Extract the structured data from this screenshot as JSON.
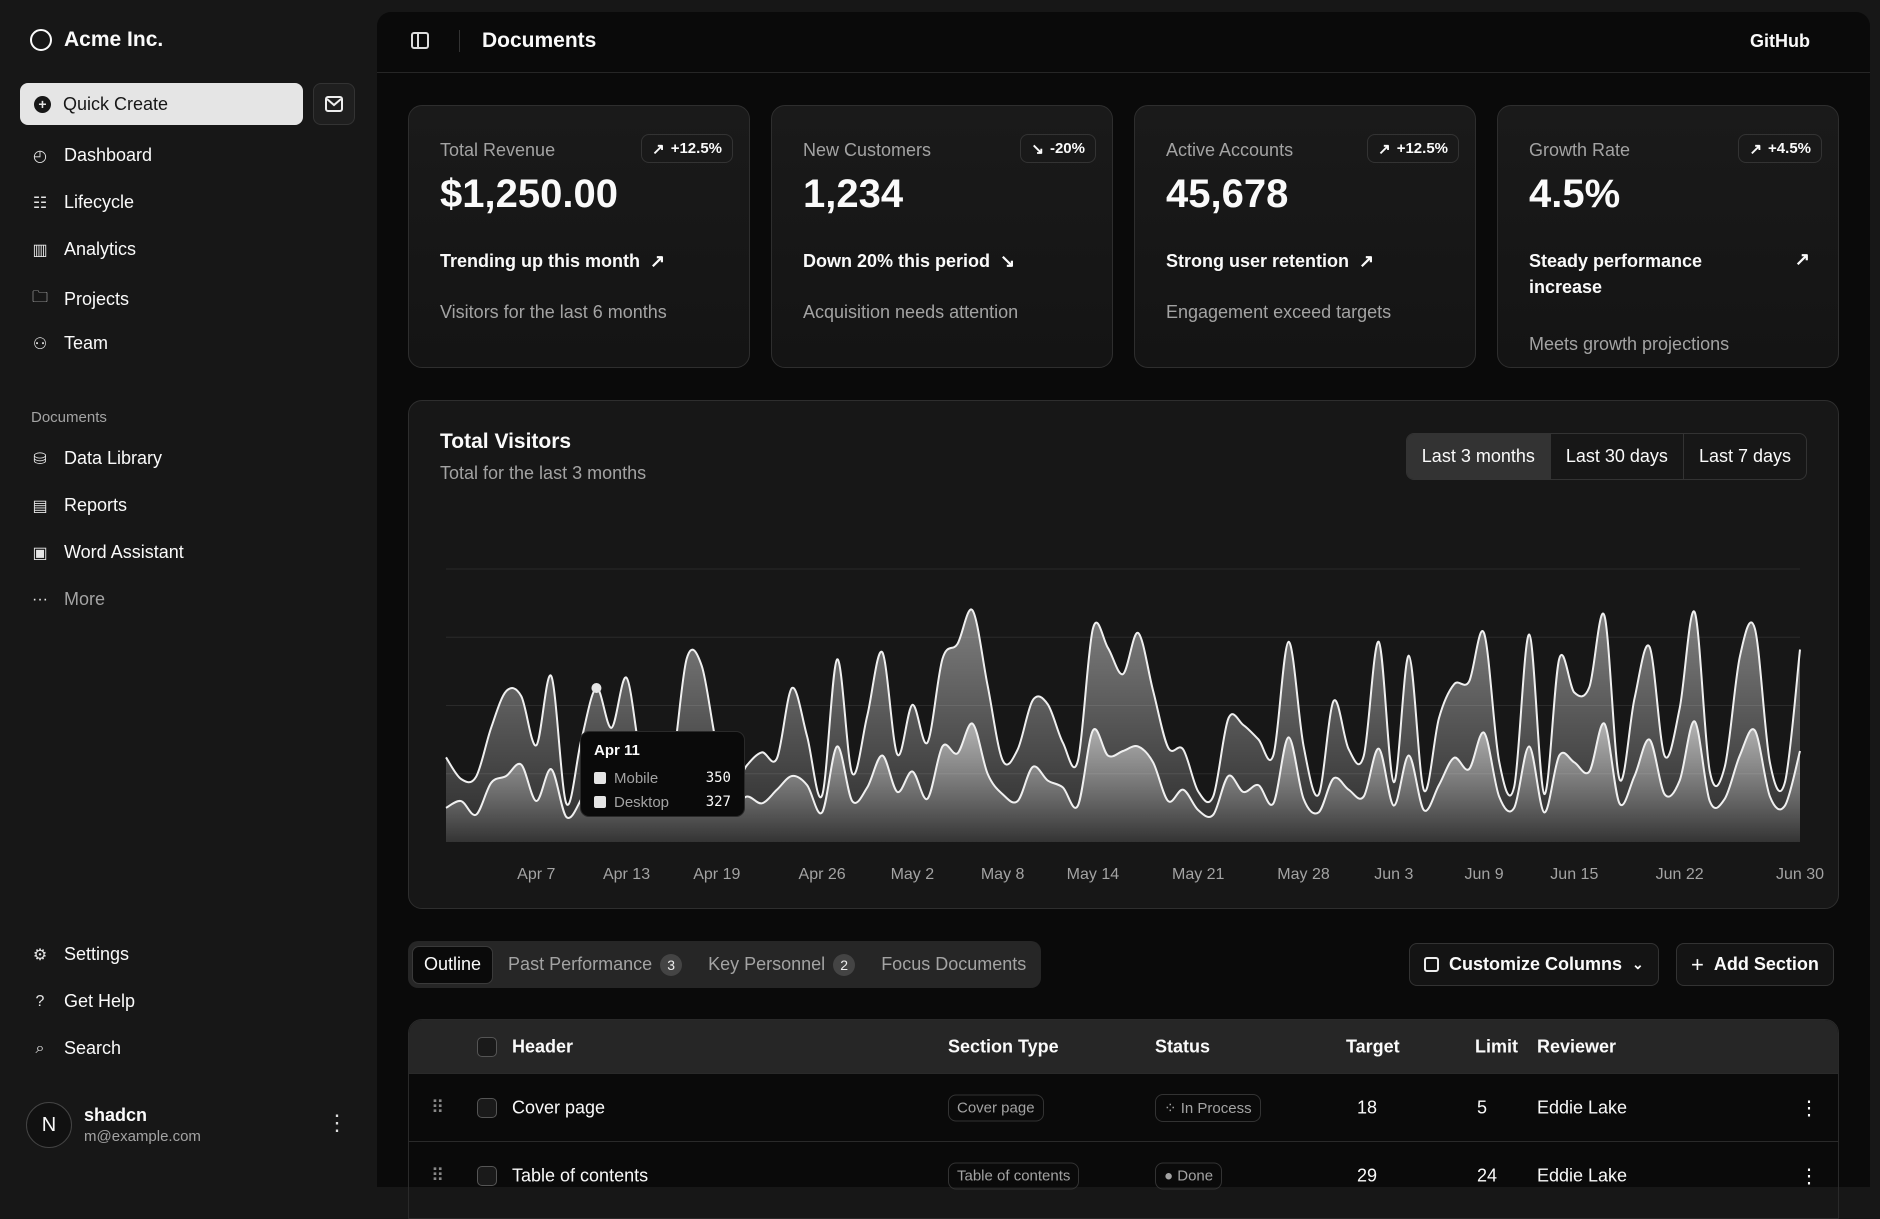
{
  "sidebar": {
    "brand": "Acme Inc.",
    "quick_create": "Quick Create",
    "nav": [
      {
        "label": "Dashboard",
        "icon": "gauge-icon"
      },
      {
        "label": "Lifecycle",
        "icon": "list-details-icon"
      },
      {
        "label": "Analytics",
        "icon": "chart-bar-icon"
      },
      {
        "label": "Projects",
        "icon": "folder-icon"
      },
      {
        "label": "Team",
        "icon": "users-icon"
      }
    ],
    "documents_label": "Documents",
    "documents": [
      {
        "label": "Data Library",
        "icon": "database-icon"
      },
      {
        "label": "Reports",
        "icon": "report-icon"
      },
      {
        "label": "Word Assistant",
        "icon": "file-word-icon"
      },
      {
        "label": "More",
        "icon": "dots-icon"
      }
    ],
    "bottom": [
      {
        "label": "Settings",
        "icon": "settings-icon"
      },
      {
        "label": "Get Help",
        "icon": "help-icon"
      },
      {
        "label": "Search",
        "icon": "search-icon"
      }
    ],
    "user": {
      "initial": "N",
      "name": "shadcn",
      "email": "m@example.com"
    }
  },
  "header": {
    "title": "Documents",
    "github": "GitHub"
  },
  "cards": [
    {
      "label": "Total Revenue",
      "badge": "+12.5%",
      "trend": "up",
      "value": "$1,250.00",
      "headline": "Trending up this month",
      "sub": "Visitors for the last 6 months"
    },
    {
      "label": "New Customers",
      "badge": "-20%",
      "trend": "down",
      "value": "1,234",
      "headline": "Down 20% this period",
      "sub": "Acquisition needs attention"
    },
    {
      "label": "Active Accounts",
      "badge": "+12.5%",
      "trend": "up",
      "value": "45,678",
      "headline": "Strong user retention",
      "sub": "Engagement exceed targets"
    },
    {
      "label": "Growth Rate",
      "badge": "+4.5%",
      "trend": "up",
      "value": "4.5%",
      "headline": "Steady performance increase",
      "sub": "Meets growth projections"
    }
  ],
  "visitors": {
    "title": "Total Visitors",
    "subtitle": "Total for the last 3 months",
    "ranges": [
      "Last 3 months",
      "Last 30 days",
      "Last 7 days"
    ],
    "selected_range": "Last 3 months",
    "tooltip": {
      "date": "Apr 11",
      "rows": [
        {
          "label": "Mobile",
          "value": "350"
        },
        {
          "label": "Desktop",
          "value": "327"
        }
      ]
    }
  },
  "chart_data": {
    "type": "area",
    "stacked": true,
    "x_start": "2024-04-01",
    "x_end": "2024-06-30",
    "ylim": [
      0,
      1200
    ],
    "grid": "horizontal",
    "x_ticks": [
      "Apr 7",
      "Apr 13",
      "Apr 19",
      "Apr 26",
      "May 2",
      "May 8",
      "May 14",
      "May 21",
      "May 28",
      "Jun 3",
      "Jun 9",
      "Jun 15",
      "Jun 22",
      "Jun 30"
    ],
    "x_tick_days": [
      6,
      12,
      18,
      25,
      31,
      37,
      43,
      50,
      57,
      63,
      69,
      75,
      82,
      90
    ],
    "series": [
      {
        "name": "Mobile",
        "values": [
          150,
          180,
          120,
          260,
          290,
          340,
          180,
          320,
          110,
          190,
          350,
          210,
          380,
          220,
          170,
          190,
          360,
          410,
          180,
          150,
          200,
          170,
          230,
          290,
          250,
          130,
          420,
          180,
          240,
          380,
          220,
          310,
          190,
          420,
          390,
          520,
          300,
          210,
          180,
          330,
          270,
          240,
          160,
          490,
          380,
          400,
          420,
          350,
          180,
          230,
          140,
          120,
          290,
          220,
          250,
          170,
          460,
          190,
          130,
          280,
          230,
          200,
          410,
          160,
          380,
          140,
          250,
          370,
          320,
          480,
          200,
          150,
          420,
          130,
          380,
          350,
          310,
          520,
          170,
          290,
          450,
          210,
          270,
          530,
          180,
          190,
          380,
          490,
          200,
          160,
          400
        ]
      },
      {
        "name": "Desktop",
        "values": [
          222,
          97,
          167,
          242,
          373,
          301,
          245,
          409,
          59,
          261,
          327,
          292,
          342,
          137,
          120,
          138,
          446,
          364,
          243,
          89,
          137,
          224,
          138,
          387,
          215,
          75,
          383,
          122,
          315,
          454,
          165,
          293,
          247,
          385,
          481,
          498,
          388,
          149,
          227,
          293,
          335,
          197,
          197,
          448,
          473,
          338,
          499,
          315,
          235,
          177,
          82,
          81,
          252,
          294,
          201,
          213,
          420,
          233,
          78,
          340,
          178,
          178,
          470,
          103,
          439,
          88,
          294,
          323,
          385,
          438,
          155,
          92,
          492,
          81,
          426,
          307,
          371,
          475,
          107,
          341,
          408,
          169,
          317,
          480,
          132,
          141,
          434,
          448,
          149,
          103,
          446
        ]
      }
    ]
  },
  "tabs": [
    {
      "label": "Outline"
    },
    {
      "label": "Past Performance",
      "count": "3"
    },
    {
      "label": "Key Personnel",
      "count": "2"
    },
    {
      "label": "Focus Documents"
    }
  ],
  "actions": {
    "customize": "Customize Columns",
    "add": "Add Section"
  },
  "table": {
    "columns": [
      "Header",
      "Section Type",
      "Status",
      "Target",
      "Limit",
      "Reviewer"
    ],
    "rows": [
      {
        "header": "Cover page",
        "type": "Cover page",
        "status": "In Process",
        "target": "18",
        "limit": "5",
        "reviewer": "Eddie Lake"
      },
      {
        "header": "Table of contents",
        "type": "Table of contents",
        "status": "Done",
        "target": "29",
        "limit": "24",
        "reviewer": "Eddie Lake"
      }
    ]
  }
}
